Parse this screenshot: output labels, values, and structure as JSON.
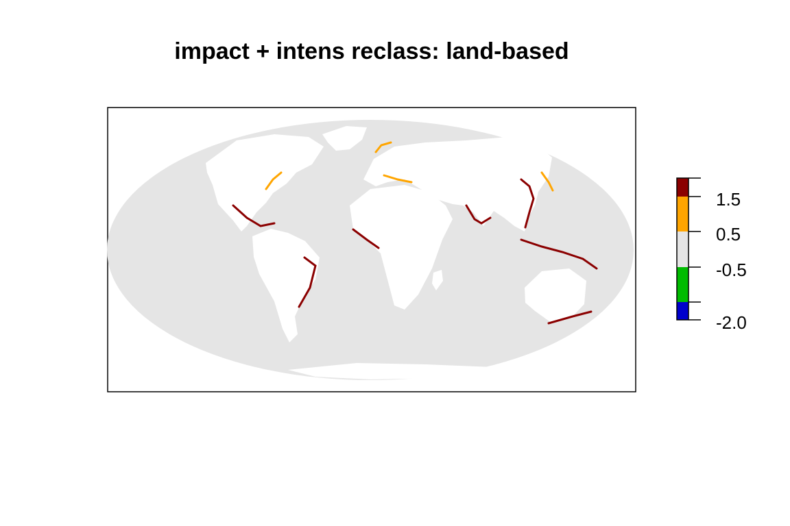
{
  "title": "impact + intens reclass: land-based",
  "colors": {
    "ocean": "#e5e5e5",
    "land": "#ffffff",
    "frame": "#000000",
    "impact_high": "#8b0000",
    "impact_medium": "#ffa500"
  },
  "chart_data": {
    "type": "heatmap",
    "projection": "mollweide",
    "title": "impact + intens reclass: land-based",
    "legend": {
      "placement": "right",
      "classes": [
        {
          "from": -2.0,
          "to": -1.5,
          "color": "#0000cd"
        },
        {
          "from": -1.5,
          "to": -0.5,
          "color": "#00bb00"
        },
        {
          "from": -0.5,
          "to": 0.5,
          "color": "#e5e5e5"
        },
        {
          "from": 0.5,
          "to": 1.5,
          "color": "#ffa500"
        },
        {
          "from": 1.5,
          "to": 2.0,
          "color": "#8b0000"
        }
      ],
      "range": [
        -2.0,
        2.0
      ],
      "tick_values": [
        1.5,
        0.5,
        -0.5,
        -2.0
      ],
      "tick_labels": [
        "1.5",
        "0.5",
        "-0.5",
        "-2.0"
      ]
    }
  }
}
